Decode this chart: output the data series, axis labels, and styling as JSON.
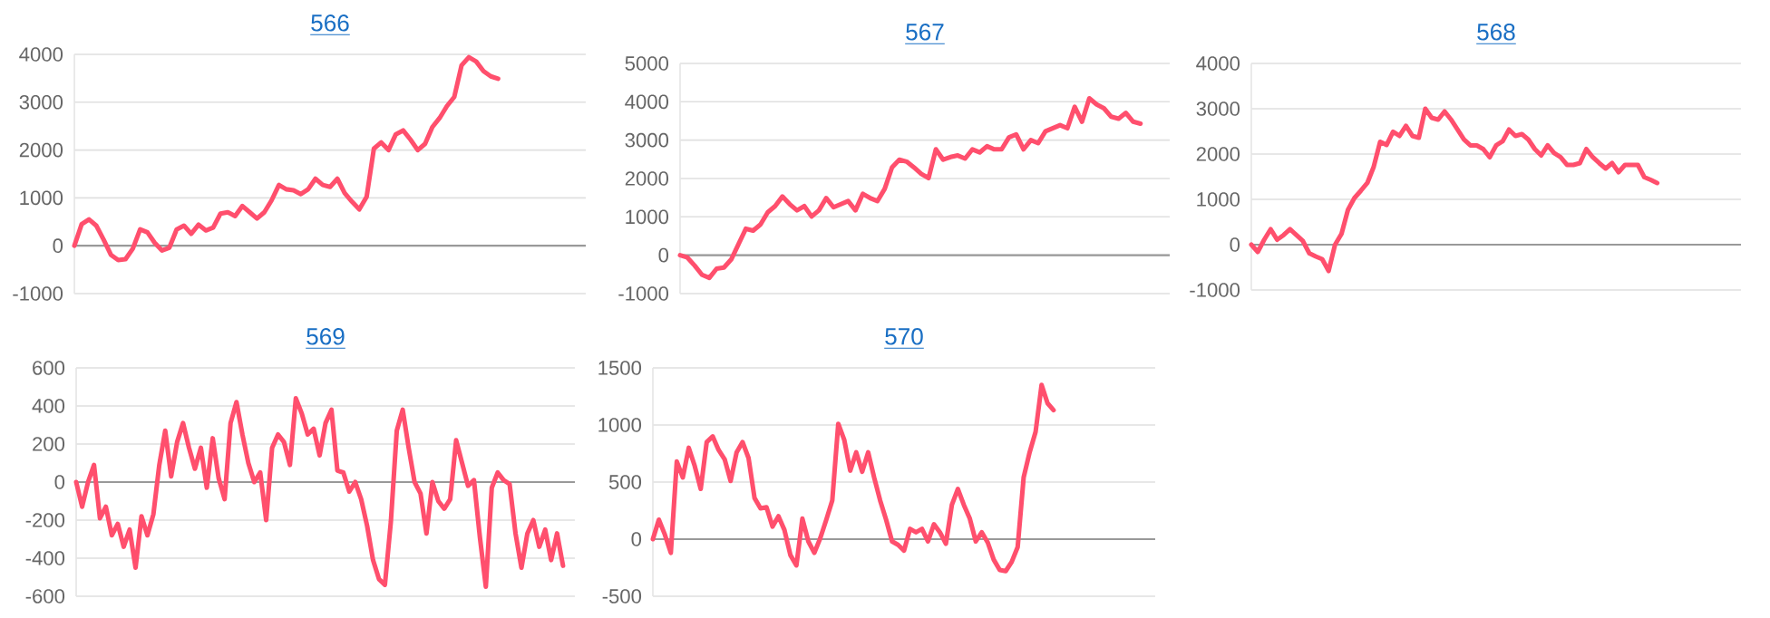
{
  "chart_data": [
    {
      "type": "line",
      "title": "566",
      "color": "#ff4f6d",
      "grid": "y",
      "tick_labels": "y",
      "ylim": [
        -1000,
        4000
      ],
      "yticks": [
        -1000,
        0,
        1000,
        2000,
        3000,
        4000
      ],
      "categories": [
        null,
        null,
        null,
        null,
        null,
        null,
        null,
        null,
        null,
        null,
        null,
        null,
        null,
        null,
        null,
        null,
        null,
        null,
        null,
        null,
        null,
        null,
        null,
        null,
        null,
        null,
        null,
        null,
        null,
        null,
        null,
        null,
        null,
        null,
        null,
        null,
        null,
        null,
        null,
        null,
        null,
        null,
        null,
        null,
        null,
        null,
        null,
        null,
        null,
        null,
        null,
        null,
        null,
        null,
        null,
        null,
        null,
        null,
        null,
        null,
        null,
        null,
        null,
        null,
        null,
        null,
        null,
        null,
        null,
        null,
        null
      ],
      "values": [
        0,
        450,
        550,
        420,
        130,
        -190,
        -300,
        -280,
        -60,
        340,
        280,
        60,
        -100,
        -40,
        340,
        420,
        250,
        440,
        320,
        380,
        670,
        700,
        620,
        830,
        700,
        570,
        700,
        950,
        1270,
        1180,
        1160,
        1080,
        1180,
        1400,
        1270,
        1230,
        1400,
        1100,
        920,
        760,
        1020,
        2030,
        2160,
        2000,
        2330,
        2410,
        2220,
        2000,
        2130,
        2480,
        2670,
        2920,
        3110,
        3770,
        3940,
        3850,
        3650,
        3540,
        3490,
        null,
        null,
        null,
        null,
        null,
        null,
        null,
        null,
        null,
        null,
        null,
        null
      ]
    },
    {
      "type": "line",
      "title": "567",
      "color": "#ff4f6d",
      "grid": "y",
      "tick_labels": "y",
      "ylim": [
        -1000,
        5000
      ],
      "yticks": [
        -1000,
        0,
        1000,
        2000,
        3000,
        4000,
        5000
      ],
      "categories": [
        null,
        null,
        null,
        null,
        null,
        null,
        null,
        null,
        null,
        null,
        null,
        null,
        null,
        null,
        null,
        null,
        null,
        null,
        null,
        null,
        null,
        null,
        null,
        null,
        null,
        null,
        null,
        null,
        null,
        null,
        null,
        null,
        null,
        null,
        null,
        null,
        null,
        null,
        null,
        null,
        null,
        null,
        null,
        null,
        null,
        null,
        null,
        null,
        null,
        null,
        null,
        null,
        null,
        null,
        null,
        null,
        null,
        null,
        null,
        null,
        null,
        null,
        null,
        null,
        null,
        null,
        null,
        null
      ],
      "values": [
        0,
        -60,
        -270,
        -510,
        -590,
        -350,
        -320,
        -110,
        290,
        690,
        640,
        800,
        1120,
        1280,
        1530,
        1330,
        1170,
        1280,
        1010,
        1170,
        1490,
        1250,
        1330,
        1410,
        1170,
        1600,
        1490,
        1410,
        1730,
        2290,
        2490,
        2440,
        2290,
        2120,
        2010,
        2760,
        2490,
        2560,
        2600,
        2520,
        2760,
        2680,
        2840,
        2760,
        2760,
        3070,
        3150,
        2760,
        3000,
        2920,
        3230,
        3310,
        3390,
        3310,
        3870,
        3480,
        4090,
        3930,
        3830,
        3610,
        3560,
        3710,
        3480,
        3430,
        null,
        null,
        null,
        null
      ]
    },
    {
      "type": "line",
      "title": "568",
      "color": "#ff4f6d",
      "grid": "y",
      "tick_labels": "y",
      "ylim": [
        -1000,
        4000
      ],
      "yticks": [
        -1000,
        0,
        1000,
        2000,
        3000,
        4000
      ],
      "categories": [
        null,
        null,
        null,
        null,
        null,
        null,
        null,
        null,
        null,
        null,
        null,
        null,
        null,
        null,
        null,
        null,
        null,
        null,
        null,
        null,
        null,
        null,
        null,
        null,
        null,
        null,
        null,
        null,
        null,
        null,
        null,
        null,
        null,
        null,
        null,
        null,
        null,
        null,
        null,
        null,
        null,
        null,
        null,
        null,
        null,
        null,
        null,
        null,
        null,
        null,
        null,
        null,
        null,
        null,
        null,
        null,
        null,
        null,
        null,
        null,
        null,
        null,
        null,
        null,
        null,
        null,
        null,
        null,
        null,
        null,
        null,
        null,
        null,
        null,
        null,
        null,
        null
      ],
      "values": [
        0,
        -160,
        110,
        340,
        110,
        210,
        340,
        210,
        80,
        -190,
        -260,
        -320,
        -580,
        0,
        240,
        770,
        1030,
        1190,
        1360,
        1720,
        2270,
        2200,
        2490,
        2400,
        2620,
        2400,
        2360,
        3000,
        2800,
        2760,
        2940,
        2760,
        2540,
        2320,
        2190,
        2190,
        2110,
        1930,
        2190,
        2280,
        2540,
        2400,
        2440,
        2320,
        2110,
        1970,
        2190,
        2020,
        1930,
        1760,
        1760,
        1800,
        2110,
        1930,
        1800,
        1680,
        1800,
        1600,
        1760,
        1760,
        1760,
        1490,
        1430,
        1360,
        null,
        null,
        null,
        null,
        null,
        null,
        null,
        null,
        null,
        null,
        null,
        null,
        null
      ]
    },
    {
      "type": "line",
      "title": "569",
      "color": "#ff4f6d",
      "grid": "y",
      "tick_labels": "y",
      "ylim": [
        -600,
        600
      ],
      "yticks": [
        -600,
        -400,
        -200,
        0,
        200,
        400,
        600
      ],
      "categories": [
        null,
        null,
        null,
        null,
        null,
        null,
        null,
        null,
        null,
        null,
        null,
        null,
        null,
        null,
        null,
        null,
        null,
        null,
        null,
        null,
        null,
        null,
        null,
        null,
        null,
        null,
        null,
        null,
        null,
        null,
        null,
        null,
        null,
        null,
        null,
        null,
        null,
        null,
        null,
        null,
        null,
        null,
        null,
        null,
        null,
        null,
        null,
        null,
        null,
        null,
        null,
        null,
        null,
        null,
        null,
        null,
        null,
        null,
        null,
        null,
        null,
        null,
        null,
        null,
        null,
        null,
        null,
        null,
        null,
        null,
        null,
        null,
        null,
        null,
        null,
        null,
        null,
        null,
        null,
        null,
        null,
        null,
        null,
        null,
        null
      ],
      "values": [
        0,
        -130,
        0,
        90,
        -190,
        -130,
        -280,
        -220,
        -340,
        -250,
        -450,
        -180,
        -280,
        -170,
        90,
        270,
        30,
        210,
        310,
        180,
        70,
        180,
        -30,
        230,
        20,
        -90,
        310,
        420,
        250,
        100,
        0,
        50,
        -200,
        180,
        250,
        210,
        90,
        440,
        360,
        250,
        280,
        140,
        310,
        380,
        60,
        50,
        -50,
        0,
        -90,
        -230,
        -410,
        -510,
        -540,
        -210,
        270,
        380,
        180,
        0,
        -60,
        -270,
        0,
        -100,
        -140,
        -90,
        220,
        100,
        -20,
        10,
        -290,
        -550,
        -30,
        50,
        10,
        -10,
        -270,
        -450,
        -270,
        -200,
        -340,
        -250,
        -410,
        -270,
        -440,
        null,
        null
      ]
    },
    {
      "type": "line",
      "title": "570",
      "color": "#ff4f6d",
      "grid": "y",
      "tick_labels": "y",
      "ylim": [
        -500,
        1500
      ],
      "yticks": [
        -500,
        0,
        500,
        1000,
        1500
      ],
      "categories": [
        null,
        null,
        null,
        null,
        null,
        null,
        null,
        null,
        null,
        null,
        null,
        null,
        null,
        null,
        null,
        null,
        null,
        null,
        null,
        null,
        null,
        null,
        null,
        null,
        null,
        null,
        null,
        null,
        null,
        null,
        null,
        null,
        null,
        null,
        null,
        null,
        null,
        null,
        null,
        null,
        null,
        null,
        null,
        null,
        null,
        null,
        null,
        null,
        null,
        null,
        null,
        null,
        null,
        null,
        null,
        null,
        null,
        null,
        null,
        null,
        null,
        null,
        null,
        null,
        null,
        null,
        null,
        null,
        null,
        null,
        null,
        null,
        null,
        null,
        null,
        null,
        null,
        null,
        null,
        null,
        null,
        null,
        null,
        null,
        null
      ],
      "values": [
        0,
        170,
        40,
        -120,
        680,
        540,
        800,
        640,
        440,
        850,
        900,
        780,
        700,
        510,
        760,
        850,
        710,
        360,
        270,
        280,
        110,
        200,
        80,
        -140,
        -230,
        180,
        -20,
        -120,
        10,
        170,
        340,
        1010,
        870,
        600,
        760,
        590,
        760,
        540,
        340,
        170,
        -20,
        -50,
        -100,
        90,
        60,
        90,
        -20,
        130,
        60,
        -40,
        300,
        440,
        300,
        180,
        -20,
        60,
        -30,
        -180,
        -270,
        -280,
        -200,
        -70,
        540,
        760,
        940,
        1350,
        1190,
        1130,
        null,
        null,
        null,
        null,
        null,
        null,
        null,
        null,
        null,
        null,
        null,
        null,
        null,
        null,
        null,
        null,
        null
      ]
    }
  ]
}
